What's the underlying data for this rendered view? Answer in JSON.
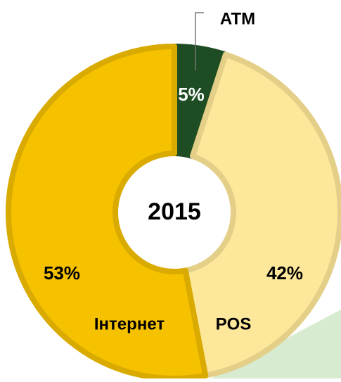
{
  "chart_data": {
    "type": "donut",
    "center_label": "2015",
    "categories": [
      "ATM",
      "POS",
      "Інтернет"
    ],
    "values": [
      5,
      42,
      53
    ],
    "value_labels": [
      "5%",
      "42%",
      "53%"
    ],
    "colors": [
      "#1e4d24",
      "#fde79a",
      "#f6c200"
    ],
    "border_colors": [
      "#1e4d24",
      "#e3cf87",
      "#d9aa00"
    ]
  }
}
